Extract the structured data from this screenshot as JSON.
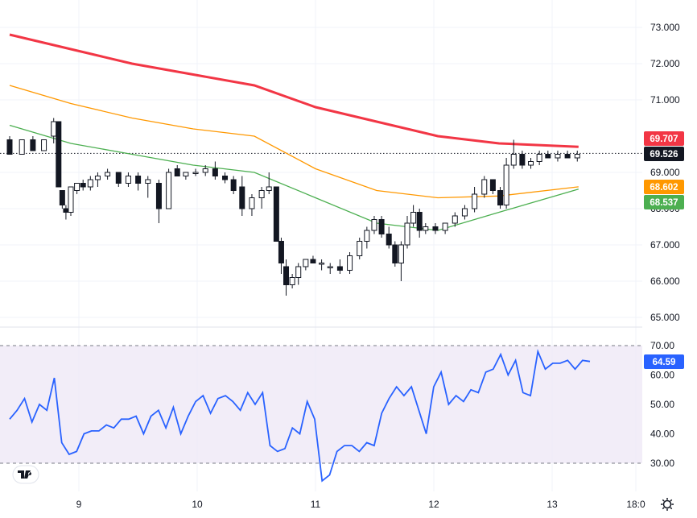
{
  "chart_data": [
    {
      "type": "candlestick",
      "title": "",
      "x_ticks": [
        "9",
        "10",
        "11",
        "12",
        "13",
        "18:0"
      ],
      "y_ticks": [
        "73.000",
        "72.000",
        "71.000",
        "69.000",
        "68.000",
        "67.000",
        "66.000",
        "65.000"
      ],
      "ylim": [
        64.7,
        73.3
      ],
      "grid": true,
      "last_price": "69.526",
      "candles": [
        [
          0.0,
          69.9,
          70.0,
          69.5,
          69.5
        ],
        [
          1.0,
          69.5,
          69.9,
          69.5,
          69.9
        ],
        [
          1.9,
          69.9,
          70.0,
          69.6,
          69.6
        ],
        [
          2.8,
          69.6,
          69.9,
          69.6,
          69.9
        ],
        [
          3.6,
          70.0,
          70.5,
          69.8,
          70.4
        ],
        [
          4.0,
          70.4,
          70.4,
          68.6,
          68.6
        ],
        [
          4.3,
          68.5,
          68.5,
          68.0,
          68.1
        ],
        [
          4.6,
          68.0,
          68.1,
          67.7,
          67.9
        ],
        [
          5.0,
          67.9,
          68.6,
          67.8,
          68.6
        ],
        [
          5.5,
          68.5,
          68.7,
          68.4,
          68.7
        ],
        [
          6.0,
          68.7,
          68.8,
          68.5,
          68.6
        ],
        [
          6.6,
          68.6,
          68.9,
          68.5,
          68.8
        ],
        [
          7.2,
          68.8,
          69.0,
          68.6,
          68.9
        ],
        [
          8.0,
          68.9,
          69.1,
          68.8,
          69.0
        ],
        [
          8.9,
          69.0,
          69.0,
          68.6,
          68.7
        ],
        [
          9.7,
          68.7,
          69.0,
          68.6,
          68.9
        ],
        [
          10.5,
          68.9,
          69.0,
          68.5,
          68.7
        ],
        [
          11.3,
          68.7,
          68.9,
          68.3,
          68.8
        ],
        [
          12.2,
          68.7,
          68.8,
          67.6,
          68.0
        ],
        [
          13.0,
          68.0,
          69.1,
          68.0,
          69.0
        ],
        [
          13.7,
          69.1,
          69.2,
          68.9,
          68.9
        ],
        [
          14.4,
          68.9,
          69.0,
          68.8,
          69.0
        ],
        [
          15.2,
          69.0,
          69.1,
          68.9,
          69.0
        ],
        [
          16.0,
          69.0,
          69.2,
          68.9,
          69.1
        ],
        [
          16.8,
          69.1,
          69.3,
          68.8,
          68.9
        ],
        [
          17.6,
          68.9,
          69.0,
          68.7,
          68.8
        ],
        [
          18.3,
          68.8,
          68.9,
          68.4,
          68.5
        ],
        [
          19.0,
          68.6,
          68.9,
          67.8,
          68.0
        ],
        [
          19.8,
          68.0,
          68.4,
          67.8,
          68.3
        ],
        [
          20.6,
          68.3,
          68.6,
          68.0,
          68.5
        ],
        [
          21.2,
          68.5,
          69.0,
          68.4,
          68.6
        ],
        [
          21.8,
          68.6,
          68.6,
          67.1,
          67.1
        ],
        [
          22.2,
          67.1,
          67.2,
          66.2,
          66.5
        ],
        [
          22.6,
          66.4,
          66.6,
          65.6,
          65.9
        ],
        [
          23.1,
          65.9,
          66.2,
          65.8,
          66.1
        ],
        [
          23.6,
          66.1,
          66.5,
          65.9,
          66.4
        ],
        [
          24.2,
          66.4,
          66.6,
          66.3,
          66.6
        ],
        [
          24.8,
          66.6,
          66.7,
          66.5,
          66.5
        ],
        [
          25.5,
          66.5,
          66.6,
          66.3,
          66.5
        ],
        [
          26.2,
          66.4,
          66.5,
          66.2,
          66.4
        ],
        [
          27.0,
          66.4,
          66.6,
          66.2,
          66.3
        ],
        [
          27.8,
          66.3,
          66.8,
          66.2,
          66.7
        ],
        [
          28.6,
          66.7,
          67.2,
          66.6,
          67.1
        ],
        [
          29.2,
          67.1,
          67.5,
          66.9,
          67.4
        ],
        [
          29.8,
          67.4,
          67.8,
          67.3,
          67.7
        ],
        [
          30.4,
          67.7,
          67.8,
          67.2,
          67.3
        ],
        [
          31.0,
          67.3,
          67.5,
          66.9,
          67.0
        ],
        [
          31.5,
          67.0,
          67.1,
          66.4,
          66.5
        ],
        [
          32.0,
          66.5,
          67.1,
          66.0,
          67.0
        ],
        [
          32.5,
          67.0,
          67.8,
          66.9,
          67.6
        ],
        [
          33.0,
          67.6,
          68.1,
          67.5,
          67.9
        ],
        [
          33.5,
          67.9,
          68.0,
          67.2,
          67.4
        ],
        [
          34.0,
          67.4,
          67.6,
          67.3,
          67.5
        ],
        [
          34.8,
          67.5,
          67.6,
          67.3,
          67.4
        ],
        [
          35.6,
          67.4,
          67.6,
          67.3,
          67.6
        ],
        [
          36.4,
          67.6,
          67.9,
          67.5,
          67.8
        ],
        [
          37.2,
          67.8,
          68.1,
          67.7,
          68.0
        ],
        [
          38.0,
          68.0,
          68.6,
          67.9,
          68.4
        ],
        [
          38.8,
          68.4,
          68.9,
          68.3,
          68.8
        ],
        [
          39.5,
          68.8,
          68.8,
          68.4,
          68.5
        ],
        [
          40.1,
          68.5,
          68.6,
          68.0,
          68.1
        ],
        [
          40.6,
          68.1,
          69.4,
          68.0,
          69.2
        ],
        [
          41.2,
          69.2,
          69.9,
          69.1,
          69.5
        ],
        [
          41.9,
          69.5,
          69.6,
          69.1,
          69.2
        ],
        [
          42.6,
          69.2,
          69.4,
          69.1,
          69.3
        ],
        [
          43.3,
          69.3,
          69.6,
          69.2,
          69.5
        ],
        [
          44.0,
          69.5,
          69.6,
          69.4,
          69.4
        ],
        [
          44.8,
          69.4,
          69.6,
          69.3,
          69.5
        ],
        [
          45.6,
          69.5,
          69.6,
          69.4,
          69.4
        ],
        [
          46.4,
          69.4,
          69.6,
          69.3,
          69.5
        ]
      ],
      "series": [
        {
          "label": "69.707",
          "color": "#f23645",
          "points": [
            [
              0,
              72.8
            ],
            [
              5,
              72.4
            ],
            [
              10,
              72.0
            ],
            [
              15,
              71.7
            ],
            [
              20,
              71.4
            ],
            [
              25,
              70.8
            ],
            [
              30,
              70.4
            ],
            [
              35,
              70.0
            ],
            [
              40,
              69.8
            ],
            [
              46.5,
              69.707
            ]
          ]
        },
        {
          "label": "68.602",
          "color": "#ff9800",
          "points": [
            [
              0,
              71.4
            ],
            [
              5,
              70.9
            ],
            [
              10,
              70.5
            ],
            [
              15,
              70.2
            ],
            [
              20,
              70.0
            ],
            [
              25,
              69.1
            ],
            [
              30,
              68.5
            ],
            [
              35,
              68.3
            ],
            [
              40,
              68.35
            ],
            [
              46.5,
              68.602
            ]
          ]
        },
        {
          "label": "68.537",
          "color": "#4caf50",
          "points": [
            [
              0,
              70.3
            ],
            [
              5,
              69.8
            ],
            [
              10,
              69.5
            ],
            [
              15,
              69.2
            ],
            [
              20,
              69.0
            ],
            [
              25,
              68.3
            ],
            [
              30,
              67.6
            ],
            [
              35,
              67.4
            ],
            [
              40,
              67.9
            ],
            [
              46.5,
              68.537
            ]
          ]
        }
      ]
    },
    {
      "type": "line",
      "title": "",
      "y_ticks": [
        "70.00",
        "60.00",
        "50.00",
        "40.00",
        "30.00"
      ],
      "ylim": [
        23,
        75
      ],
      "band": [
        30,
        70
      ],
      "last_label": "64.59",
      "series": [
        {
          "color": "#2962ff",
          "values": [
            45,
            48,
            52,
            44,
            50,
            48,
            59,
            37,
            33,
            34,
            40,
            41,
            41,
            43,
            42,
            45,
            45,
            46,
            40,
            46,
            48,
            42,
            49,
            40,
            46,
            51,
            53,
            47,
            52,
            53,
            51,
            48,
            54,
            50,
            54,
            36,
            34,
            35,
            42,
            40,
            51,
            45,
            24,
            26,
            34,
            36,
            36,
            34,
            37,
            36,
            47,
            52,
            56,
            53,
            56,
            48,
            40,
            56,
            61,
            50,
            53,
            51,
            55,
            54,
            61,
            62,
            67,
            60,
            65,
            54,
            53,
            68,
            62,
            64,
            64,
            65,
            62,
            65,
            64.59
          ]
        }
      ]
    }
  ]
}
